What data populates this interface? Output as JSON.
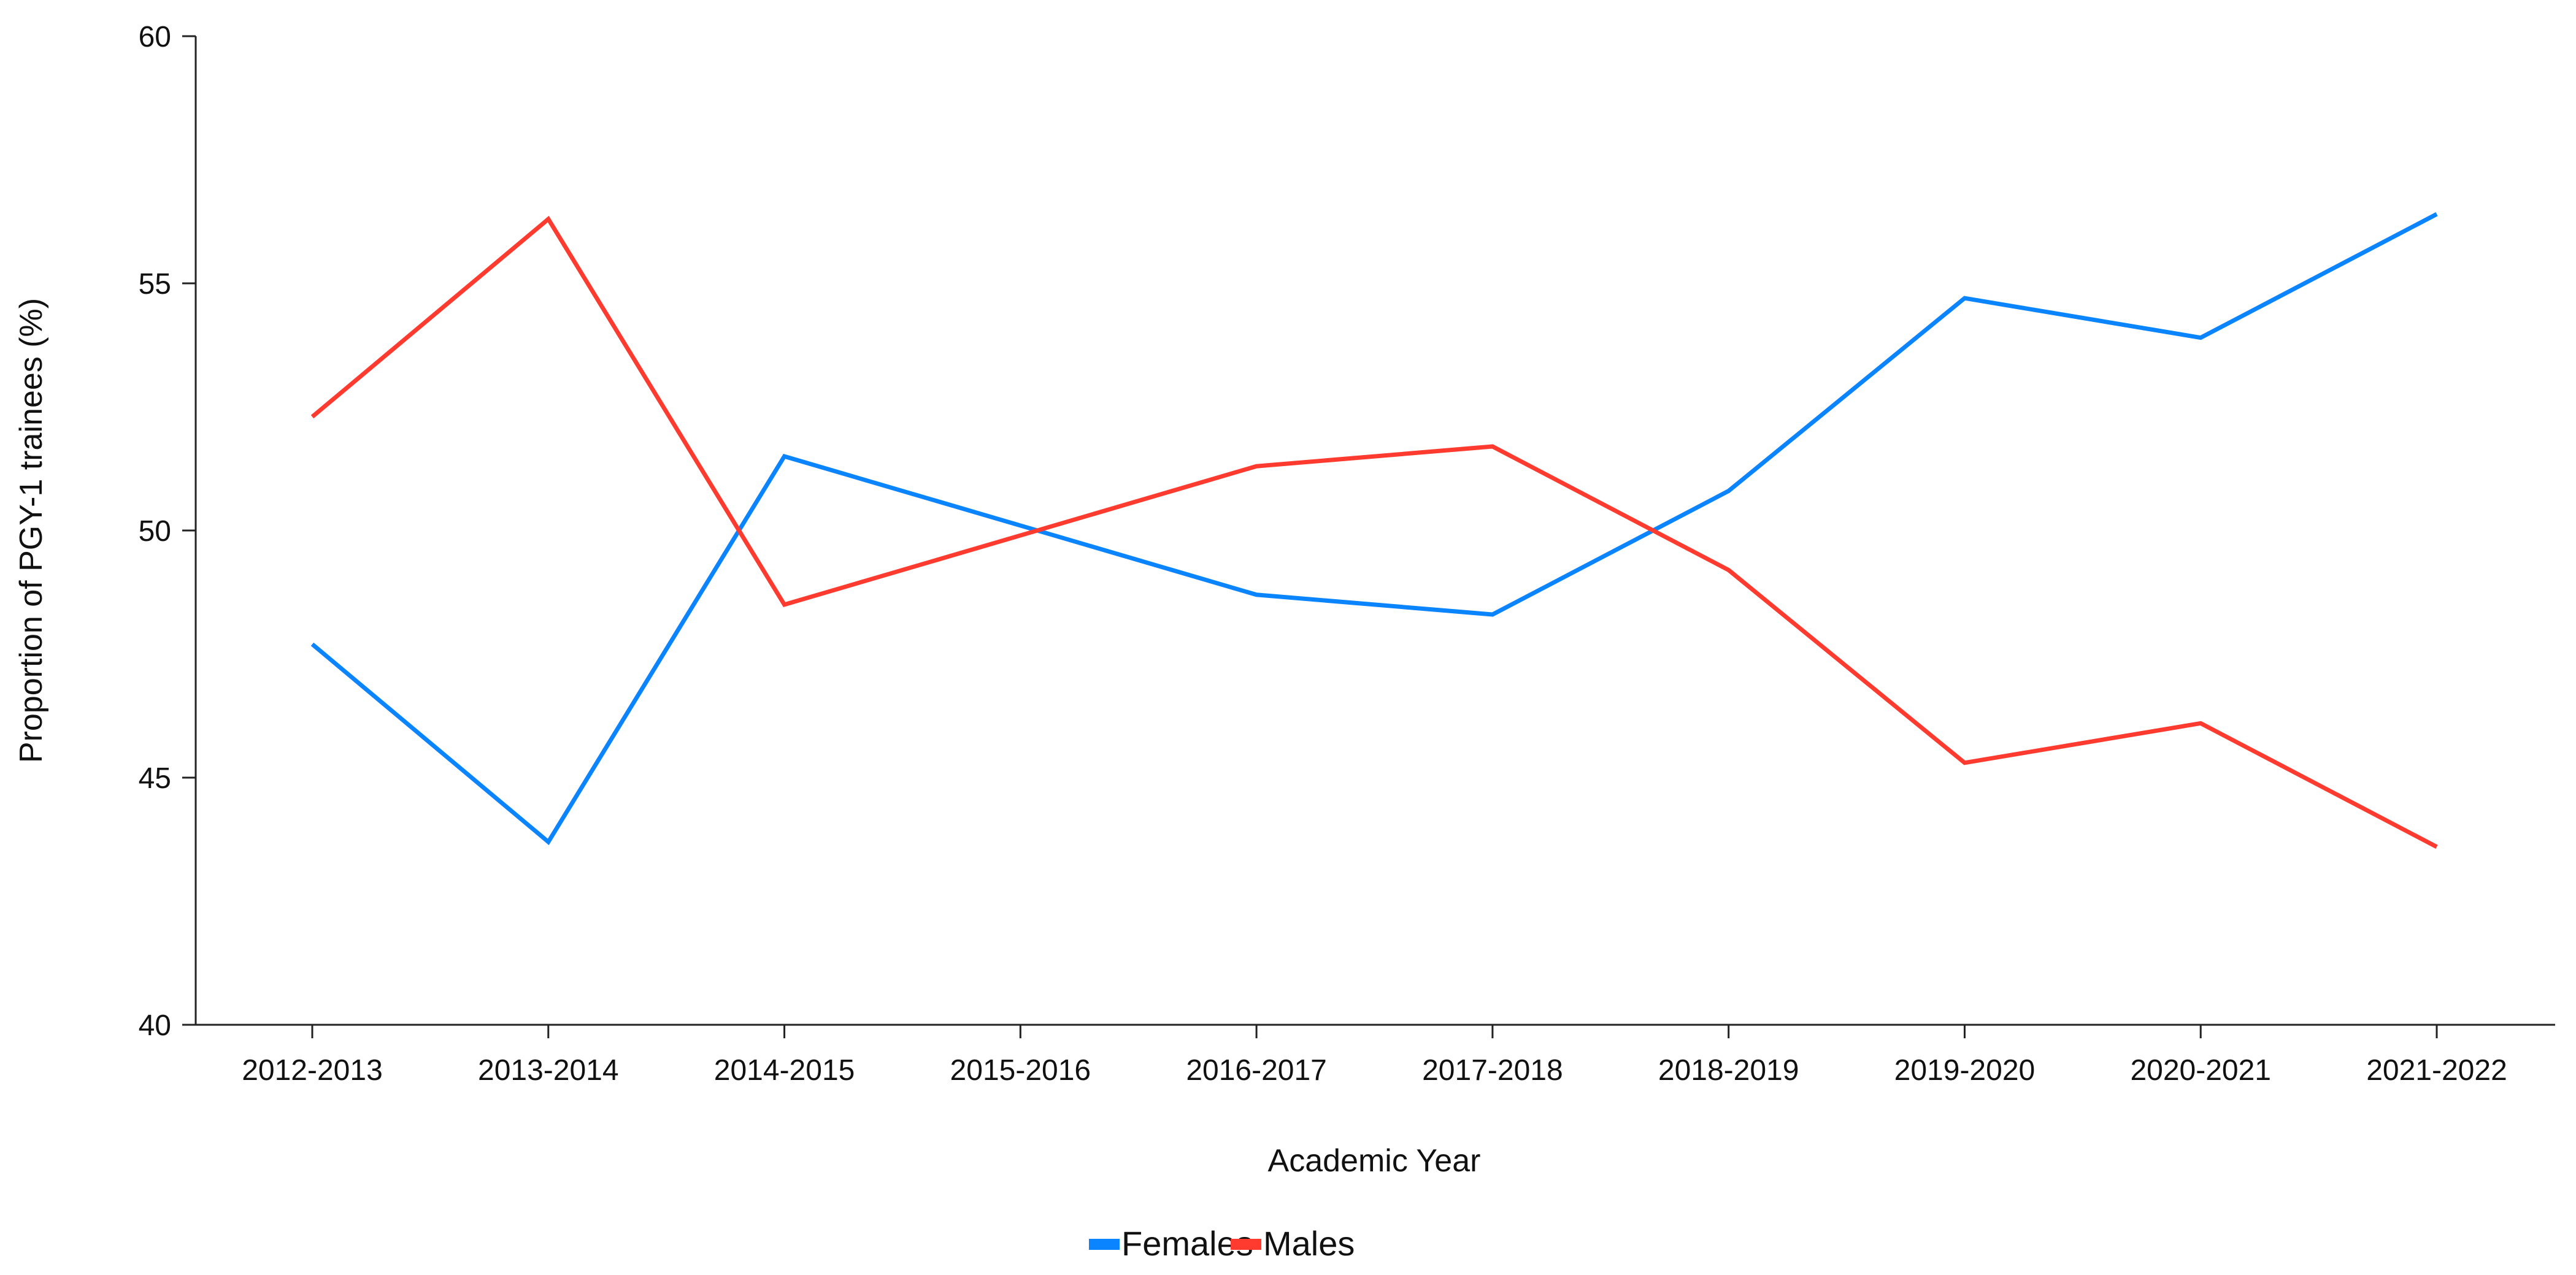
{
  "chart_data": {
    "type": "line",
    "title": "",
    "xlabel": "Academic Year",
    "ylabel": "Proportion of PGY-1 trainees (%)",
    "ylim": [
      40,
      60
    ],
    "yticks": [
      40,
      45,
      50,
      55,
      60
    ],
    "categories": [
      "2012-2013",
      "2013-2014",
      "2014-2015",
      "2015-2016",
      "2016-2017",
      "2017-2018",
      "2018-2019",
      "2019-2020",
      "2020-2021",
      "2021-2022"
    ],
    "series": [
      {
        "name": "Females",
        "color": "#0A84FF",
        "values": [
          47.7,
          43.7,
          51.5,
          50.1,
          48.7,
          48.3,
          50.8,
          54.7,
          53.9,
          56.4
        ]
      },
      {
        "name": "Males",
        "color": "#FF3B30",
        "values": [
          52.3,
          56.3,
          48.5,
          49.9,
          51.3,
          51.7,
          49.2,
          45.3,
          46.1,
          43.6
        ]
      }
    ],
    "grid": false,
    "legend": "bottom-center"
  }
}
